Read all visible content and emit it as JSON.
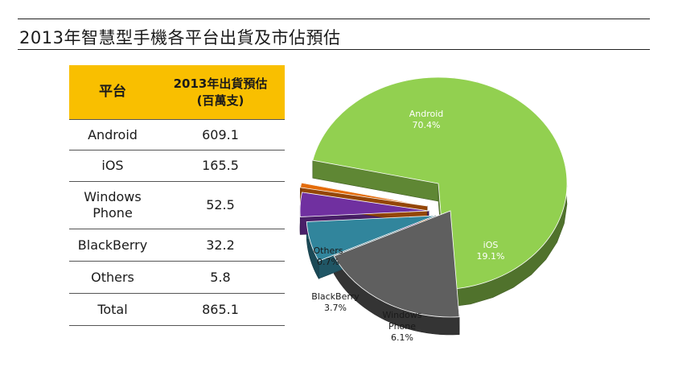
{
  "header": {
    "title": "2013年智慧型手機各平台出貨及市佔預估"
  },
  "table": {
    "col1_header": "平台",
    "col2_header_line1": "2013年出貨預估",
    "col2_header_line2": "(百萬支)",
    "rows": [
      {
        "platform_line1": "Android",
        "platform_line2": "",
        "value": "609.1"
      },
      {
        "platform_line1": "iOS",
        "platform_line2": "",
        "value": "165.5"
      },
      {
        "platform_line1": "Windows",
        "platform_line2": "Phone",
        "value": "52.5"
      },
      {
        "platform_line1": "BlackBerry",
        "platform_line2": "",
        "value": "32.2"
      },
      {
        "platform_line1": "Others",
        "platform_line2": "",
        "value": "5.8"
      },
      {
        "platform_line1": "Total",
        "platform_line2": "",
        "value": "865.1"
      }
    ]
  },
  "chart_data": {
    "type": "pie",
    "slices": [
      {
        "name_lines": [
          "Android"
        ],
        "value": 70.4,
        "label": "70.4%",
        "color": "#92d050"
      },
      {
        "name_lines": [
          "iOS"
        ],
        "value": 19.1,
        "label": "19.1%",
        "color": "#5f5f5f"
      },
      {
        "name_lines": [
          "Windows",
          "Phone"
        ],
        "value": 6.1,
        "label": "6.1%",
        "color": "#31859c"
      },
      {
        "name_lines": [
          "BlackBerry"
        ],
        "value": 3.7,
        "label": "3.7%",
        "color": "#7030a0"
      },
      {
        "name_lines": [
          "Others"
        ],
        "value": 0.7,
        "label": "0.7%",
        "color": "#e46c0a"
      }
    ],
    "exploded": true,
    "three_d": true
  }
}
